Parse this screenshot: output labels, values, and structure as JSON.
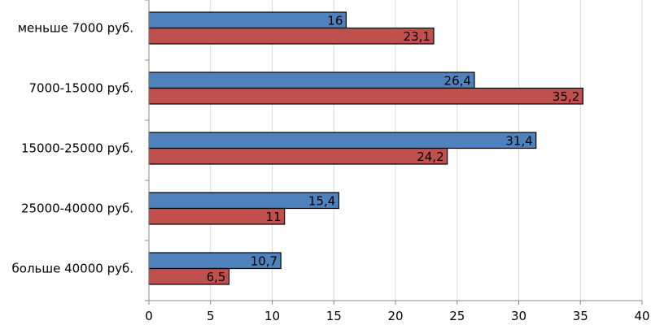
{
  "chart_data": {
    "type": "bar",
    "orientation": "horizontal",
    "title": "",
    "xlabel": "",
    "ylabel": "",
    "categories": [
      "меньше 7000 руб.",
      "7000-15000 руб.",
      "15000-25000 руб.",
      "25000-40000 руб.",
      "больше 40000 руб."
    ],
    "series": [
      {
        "color": "#4f81bd",
        "values": [
          16,
          26.4,
          31.4,
          15.4,
          10.7
        ],
        "labels": [
          "16",
          "26,4",
          "31,4",
          "15,4",
          "10,7"
        ]
      },
      {
        "color": "#c0504d",
        "values": [
          23.1,
          35.2,
          24.2,
          11,
          6.5
        ],
        "labels": [
          "23,1",
          "35,2",
          "24,2",
          "11",
          "6,5"
        ]
      }
    ],
    "xlim": [
      0,
      40
    ],
    "xticks": [
      0,
      5,
      10,
      15,
      20,
      25,
      30,
      35,
      40
    ],
    "grid": "vertical",
    "legend": "none"
  }
}
